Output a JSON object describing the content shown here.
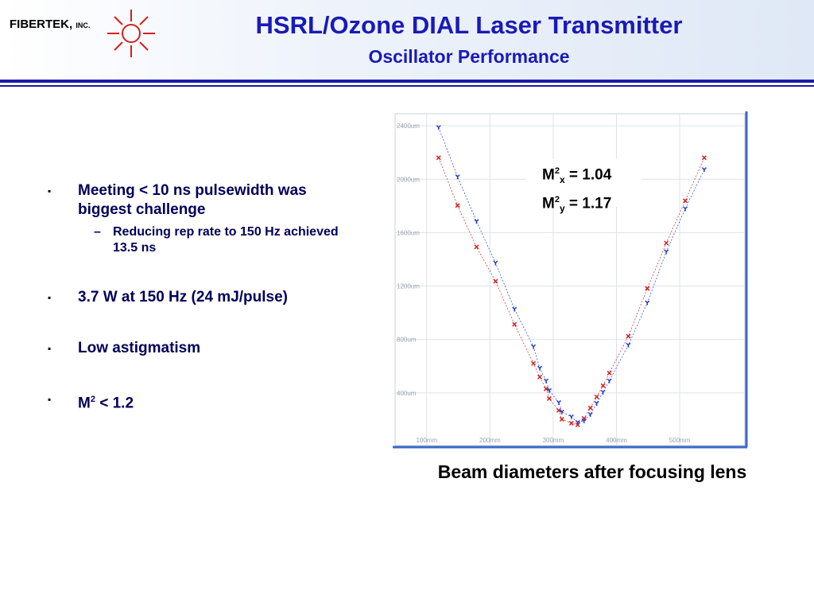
{
  "header": {
    "logo": {
      "name": "FIBERTEK,",
      "suffix": "INC."
    },
    "title": "HSRL/Ozone DIAL Laser Transmitter",
    "subtitle": "Oscillator Performance"
  },
  "bullets": [
    {
      "text": "Meeting < 10 ns pulsewidth was biggest challenge",
      "sub": [
        "Reducing rep rate to 150 Hz achieved 13.5 ns"
      ]
    },
    {
      "text": "3.7 W at 150 Hz (24 mJ/pulse)"
    },
    {
      "text": "Low astigmatism"
    },
    {
      "base": "M",
      "sup": "2",
      "rest": " < 1.2"
    }
  ],
  "caption": "Beam diameters after focusing lens",
  "chart_data": {
    "type": "scatter",
    "xlim": [
      50,
      603
    ],
    "ylim": [
      6,
      2490
    ],
    "xticks": [
      {
        "value": 100,
        "label": "100mm"
      },
      {
        "value": 200,
        "label": "200mm"
      },
      {
        "value": 300,
        "label": "300mm"
      },
      {
        "value": 400,
        "label": "400mm"
      },
      {
        "value": 500,
        "label": "500mm"
      }
    ],
    "yticks": [
      {
        "value": 400,
        "label": "400um"
      },
      {
        "value": 800,
        "label": "800um"
      },
      {
        "value": 1200,
        "label": "1200um"
      },
      {
        "value": 1600,
        "label": "1600um"
      },
      {
        "value": 2000,
        "label": "2000um"
      },
      {
        "value": 2400,
        "label": "2400um"
      }
    ],
    "grid": true,
    "annotations": [
      {
        "base": "M",
        "sup": "2",
        "sub": "x",
        "text": " = 1.04"
      },
      {
        "base": "M",
        "sup": "2",
        "sub": "y",
        "text": " = 1.17"
      }
    ],
    "series": [
      {
        "color": "#d42020",
        "marker": "x",
        "x": [
          118.8,
          148.8,
          178.8,
          208.8,
          238.8,
          268.8,
          278.8,
          288.8,
          293.8,
          308.8,
          313.8,
          328.8,
          338.8,
          348.8,
          358.8,
          368.8,
          378.8,
          388.8,
          418.8,
          448.8,
          478.8,
          508.8,
          538.8
        ],
        "values": [
          2161,
          1803,
          1493,
          1236,
          913,
          621,
          519,
          430,
          358,
          269,
          203,
          173,
          161,
          209,
          287,
          370,
          454,
          549,
          824,
          1182,
          1522,
          1839,
          2161
        ]
      },
      {
        "color": "#2040d0",
        "marker": "y",
        "x": [
          118.8,
          148.8,
          178.8,
          208.8,
          238.8,
          268.8,
          278.8,
          288.8,
          293.8,
          308.8,
          313.8,
          328.8,
          338.8,
          348.8,
          358.8,
          368.8,
          378.8,
          388.8,
          418.8,
          448.8,
          478.8,
          508.8,
          538.8
        ],
        "values": [
          2388,
          2018,
          1684,
          1373,
          1027,
          746,
          585,
          490,
          418,
          328,
          257,
          221,
          179,
          191,
          239,
          322,
          406,
          490,
          758,
          1075,
          1457,
          1779,
          2072
        ]
      }
    ]
  }
}
